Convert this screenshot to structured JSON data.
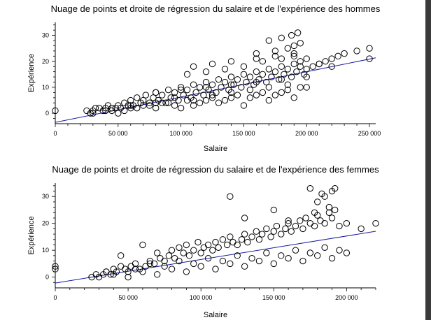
{
  "window": {
    "edge_color": "#3a3a3a"
  },
  "chart_data": [
    {
      "type": "scatter",
      "title": "Nuage de points et droite de régression du salaire et de l'expérience des hommes",
      "xlabel": "Salaire",
      "ylabel": "Expérience",
      "xlim": [
        0,
        255000
      ],
      "ylim": [
        -4,
        35
      ],
      "x_ticks": [
        0,
        50000,
        100000,
        150000,
        200000,
        250000
      ],
      "x_tick_labels": [
        "0",
        "50 000",
        "100 000",
        "150 000",
        "200 000",
        "250 000"
      ],
      "y_ticks": [
        0,
        10,
        20,
        30
      ],
      "y_tick_labels": [
        "0",
        "10",
        "20",
        "30"
      ],
      "grid": false,
      "marker_color": "#000000",
      "series": [
        {
          "marker": "open-circle",
          "x": [
            0,
            25000,
            28000,
            30000,
            32000,
            35000,
            38000,
            40000,
            42000,
            45000,
            48000,
            50000,
            52000,
            55000,
            58000,
            60000,
            62000,
            65000,
            68000,
            70000,
            72000,
            75000,
            78000,
            80000,
            82000,
            85000,
            88000,
            90000,
            92000,
            95000,
            98000,
            100000,
            102000,
            105000,
            108000,
            110000,
            112000,
            115000,
            118000,
            120000,
            122000,
            125000,
            128000,
            130000,
            132000,
            135000,
            138000,
            140000,
            142000,
            145000,
            148000,
            150000,
            152000,
            155000,
            158000,
            160000,
            162000,
            165000,
            168000,
            170000,
            172000,
            175000,
            178000,
            180000,
            182000,
            185000,
            188000,
            190000,
            192000,
            195000,
            198000,
            200000,
            205000,
            210000,
            215000,
            220000,
            225000,
            230000,
            240000,
            250000,
            30000,
            40000,
            50000,
            60000,
            70000,
            80000,
            90000,
            100000,
            110000,
            120000,
            130000,
            140000,
            150000,
            160000,
            170000,
            180000,
            190000,
            200000,
            55000,
            65000,
            75000,
            85000,
            95000,
            105000,
            115000,
            125000,
            135000,
            145000,
            155000,
            165000,
            175000,
            185000,
            195000,
            45000,
            60000,
            80000,
            95000,
            110000,
            125000,
            140000,
            155000,
            170000,
            185000,
            105000,
            120000,
            135000,
            150000,
            165000,
            180000,
            190000,
            160000,
            175000,
            185000,
            190000,
            195000,
            170000,
            180000,
            188000,
            193000,
            110000,
            125000,
            140000,
            160000,
            175000,
            190000,
            195000,
            200000,
            210000,
            220000,
            250000,
            80000,
            100000,
            120000,
            140000,
            160000,
            180000,
            200000
          ],
          "y": [
            1,
            1,
            0,
            1,
            2,
            2,
            1,
            2,
            3,
            1,
            2,
            3,
            2,
            4,
            3,
            5,
            3,
            6,
            4,
            5,
            7,
            4,
            6,
            8,
            5,
            7,
            4,
            9,
            6,
            8,
            5,
            10,
            7,
            9,
            6,
            11,
            8,
            10,
            7,
            12,
            9,
            11,
            8,
            13,
            10,
            12,
            9,
            14,
            11,
            13,
            10,
            15,
            12,
            14,
            11,
            16,
            13,
            15,
            12,
            17,
            14,
            16,
            13,
            18,
            15,
            17,
            14,
            19,
            16,
            18,
            15,
            17,
            18,
            19,
            20,
            21,
            22,
            23,
            24,
            25,
            0,
            1,
            0,
            2,
            3,
            2,
            4,
            2,
            3,
            5,
            4,
            6,
            3,
            7,
            5,
            8,
            6,
            10,
            1,
            2,
            3,
            4,
            3,
            5,
            4,
            6,
            5,
            7,
            6,
            8,
            7,
            9,
            10,
            2,
            3,
            4,
            6,
            5,
            7,
            8,
            9,
            10,
            11,
            15,
            16,
            17,
            18,
            20,
            21,
            22,
            23,
            24,
            25,
            26,
            27,
            28,
            29,
            30,
            31,
            18,
            19,
            20,
            21,
            22,
            23,
            20,
            21,
            19,
            18,
            21,
            8,
            9,
            10,
            11,
            12,
            13,
            14
          ]
        }
      ],
      "regression": {
        "slope": 9.75e-05,
        "intercept": -3.5,
        "color": "#1a1aa0"
      }
    },
    {
      "type": "scatter",
      "title": "Nuage de points et droite de régression du salaire et de l'expérience des femmes",
      "xlabel": "Salaire",
      "ylabel": "Expérience",
      "xlim": [
        0,
        220000
      ],
      "ylim": [
        -4,
        35
      ],
      "x_ticks": [
        0,
        50000,
        100000,
        150000,
        200000
      ],
      "x_tick_labels": [
        "0",
        "50 000",
        "100 000",
        "150 000",
        "200 000"
      ],
      "y_ticks": [
        0,
        10,
        20,
        30
      ],
      "y_tick_labels": [
        "0",
        "10",
        "20",
        "30"
      ],
      "grid": false,
      "marker_color": "#000000",
      "series": [
        {
          "marker": "open-circle",
          "x": [
            0,
            0,
            25000,
            28000,
            30000,
            33000,
            35000,
            38000,
            40000,
            42000,
            45000,
            48000,
            50000,
            52000,
            55000,
            58000,
            60000,
            62000,
            65000,
            68000,
            70000,
            72000,
            75000,
            78000,
            80000,
            82000,
            85000,
            88000,
            90000,
            92000,
            95000,
            98000,
            100000,
            102000,
            105000,
            108000,
            110000,
            112000,
            115000,
            118000,
            120000,
            122000,
            125000,
            128000,
            130000,
            132000,
            135000,
            138000,
            140000,
            142000,
            145000,
            148000,
            150000,
            152000,
            155000,
            158000,
            160000,
            162000,
            165000,
            168000,
            170000,
            172000,
            175000,
            178000,
            180000,
            182000,
            185000,
            188000,
            190000,
            192000,
            195000,
            200000,
            210000,
            220000,
            40000,
            60000,
            80000,
            100000,
            120000,
            140000,
            160000,
            180000,
            200000,
            50000,
            70000,
            90000,
            110000,
            130000,
            150000,
            170000,
            190000,
            120000,
            130000,
            150000,
            160000,
            175000,
            180000,
            185000,
            188000,
            190000,
            192000,
            183000,
            178000,
            45000,
            65000,
            85000,
            105000,
            125000,
            145000,
            165000,
            185000,
            35000,
            55000,
            75000,
            95000,
            115000,
            135000,
            155000,
            175000,
            195000
          ],
          "y": [
            3,
            4,
            0,
            1,
            0,
            1,
            2,
            1,
            3,
            2,
            8,
            3,
            2,
            4,
            5,
            3,
            12,
            4,
            6,
            5,
            9,
            7,
            6,
            8,
            10,
            7,
            11,
            9,
            12,
            8,
            10,
            13,
            9,
            11,
            12,
            10,
            13,
            11,
            14,
            12,
            15,
            13,
            12,
            14,
            16,
            13,
            15,
            17,
            14,
            16,
            18,
            15,
            17,
            19,
            16,
            18,
            20,
            17,
            19,
            21,
            18,
            22,
            20,
            19,
            23,
            21,
            20,
            24,
            22,
            25,
            19,
            20,
            18,
            20,
            1,
            2,
            3,
            4,
            5,
            6,
            7,
            8,
            9,
            0,
            1,
            2,
            3,
            4,
            5,
            6,
            7,
            30,
            22,
            25,
            21,
            33,
            28,
            30,
            26,
            32,
            33,
            31,
            24,
            4,
            5,
            6,
            7,
            8,
            9,
            10,
            11,
            2,
            3,
            4,
            5,
            6,
            7,
            8,
            9,
            10
          ]
        }
      ],
      "regression": {
        "slope": 8.75e-05,
        "intercept": -2.2,
        "color": "#1a1aa0"
      }
    }
  ]
}
